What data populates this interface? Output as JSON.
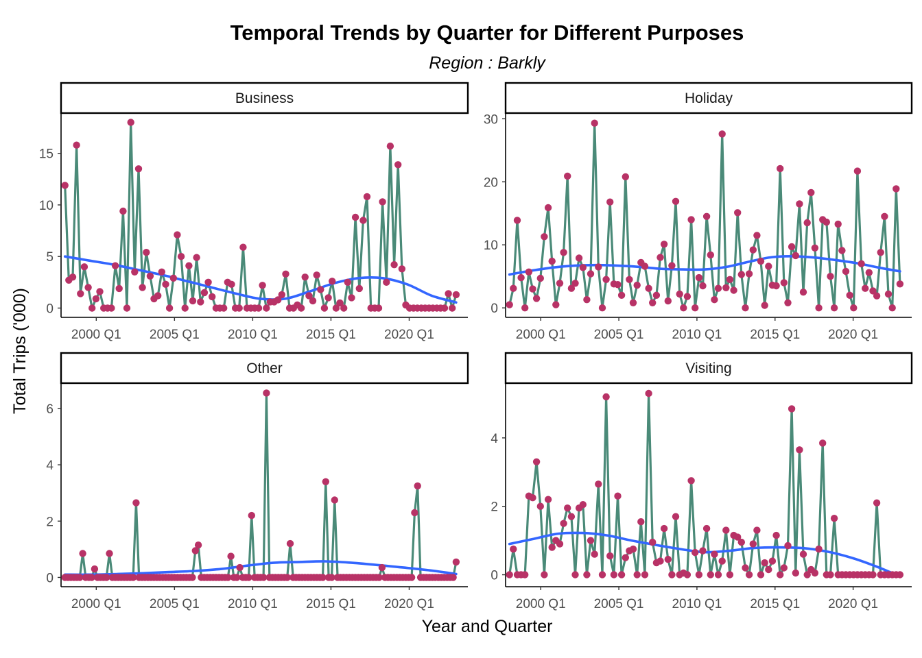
{
  "title": "Temporal Trends by Quarter for Different Purposes",
  "subtitle": "Region : Barkly",
  "xlabel": "Year and Quarter",
  "ylabel": "Total Trips ('000)",
  "colors": {
    "line": "#4a8a78",
    "point": "#b83266",
    "smooth": "#3366ff"
  },
  "chart_data": [
    {
      "type": "line",
      "panel": "Business",
      "x_start": "1998 Q1",
      "x_ticks": [
        "2000 Q1",
        "2005 Q1",
        "2010 Q1",
        "2015 Q1",
        "2020 Q1"
      ],
      "y_ticks": [
        0,
        5,
        10,
        15
      ],
      "ylim": [
        -0.9,
        18.9
      ],
      "values": [
        11.9,
        2.7,
        3.0,
        15.8,
        1.4,
        4.0,
        2.0,
        0.0,
        0.9,
        1.6,
        0.0,
        0.0,
        0.0,
        4.1,
        1.9,
        9.4,
        0.0,
        18.0,
        3.5,
        13.5,
        2.0,
        5.4,
        3.1,
        0.9,
        1.2,
        3.5,
        2.3,
        0.0,
        2.9,
        7.1,
        5.0,
        0.0,
        4.1,
        0.7,
        4.9,
        0.6,
        1.5,
        2.5,
        1.1,
        0.0,
        0.0,
        0.0,
        2.5,
        2.3,
        0.0,
        0.0,
        5.9,
        0.0,
        0.0,
        0.0,
        0.0,
        2.2,
        0.0,
        0.6,
        0.6,
        0.8,
        1.3,
        3.3,
        0.0,
        0.0,
        0.3,
        0.0,
        3.0,
        1.2,
        0.7,
        3.2,
        1.8,
        0.0,
        1.0,
        2.6,
        0.0,
        0.5,
        0.0,
        2.5,
        1.0,
        8.8,
        1.9,
        8.5,
        10.8,
        0.0,
        0.0,
        0.0,
        10.3,
        2.5,
        15.7,
        4.2,
        13.9,
        3.8,
        0.3,
        0.0,
        0.0,
        0.0,
        0.0,
        0.0,
        0.0,
        0.0,
        0.0,
        0.0,
        0.0,
        1.4,
        0.0,
        1.3
      ],
      "smooth": [
        5.0,
        4.6,
        4.2,
        3.7,
        3.2,
        2.6,
        2.0,
        1.4,
        0.9,
        0.9,
        1.6,
        2.4,
        2.9,
        2.9,
        2.3,
        1.2,
        0.55
      ]
    },
    {
      "type": "line",
      "panel": "Holiday",
      "x_start": "1998 Q1",
      "x_ticks": [
        "2000 Q1",
        "2005 Q1",
        "2010 Q1",
        "2015 Q1",
        "2020 Q1"
      ],
      "y_ticks": [
        0,
        10,
        20,
        30
      ],
      "ylim": [
        -1.5,
        30.9
      ],
      "values": [
        0.5,
        3.1,
        13.9,
        4.8,
        0.0,
        5.7,
        3.0,
        1.5,
        4.7,
        11.3,
        15.9,
        7.4,
        0.5,
        3.9,
        8.8,
        20.9,
        3.1,
        3.9,
        7.9,
        6.4,
        1.3,
        5.4,
        29.3,
        6.5,
        0.0,
        4.5,
        16.8,
        3.8,
        3.7,
        2.0,
        20.8,
        4.5,
        0.8,
        3.6,
        7.2,
        6.6,
        3.1,
        0.8,
        2.0,
        8.0,
        10.1,
        1.1,
        6.7,
        16.9,
        2.2,
        0.0,
        1.8,
        14.0,
        0.0,
        4.8,
        3.5,
        14.5,
        8.4,
        1.3,
        3.1,
        27.6,
        3.2,
        4.5,
        2.8,
        15.1,
        5.3,
        0.0,
        5.4,
        9.2,
        11.5,
        7.4,
        0.4,
        6.6,
        3.6,
        3.5,
        22.1,
        4.0,
        0.8,
        9.7,
        8.3,
        16.5,
        2.5,
        13.5,
        18.3,
        9.5,
        0.0,
        14.0,
        13.6,
        5.0,
        0.0,
        13.3,
        9.1,
        5.8,
        2.0,
        0.0,
        21.7,
        7.0,
        3.1,
        5.6,
        2.7,
        1.9,
        8.8,
        14.5,
        2.2,
        0.0,
        18.9,
        3.8
      ],
      "smooth": [
        5.3,
        5.9,
        6.4,
        6.7,
        6.8,
        6.7,
        6.5,
        6.2,
        6.1,
        6.1,
        6.5,
        7.3,
        8.0,
        8.2,
        8.0,
        7.6,
        7.1,
        6.4,
        5.8
      ]
    },
    {
      "type": "line",
      "panel": "Other",
      "x_start": "1998 Q1",
      "x_ticks": [
        "2000 Q1",
        "2005 Q1",
        "2010 Q1",
        "2015 Q1",
        "2020 Q1"
      ],
      "y_ticks": [
        0,
        2,
        4,
        6
      ],
      "ylim": [
        -0.33,
        6.9
      ],
      "values": [
        0,
        0,
        0,
        0,
        0,
        0,
        0.85,
        0,
        0,
        0,
        0.3,
        0,
        0,
        0,
        0,
        0.85,
        0,
        0,
        0,
        0,
        0,
        0,
        0,
        0,
        2.65,
        0,
        0,
        0,
        0,
        0,
        0,
        0,
        0,
        0,
        0,
        0,
        0,
        0,
        0,
        0,
        0,
        0,
        0,
        0,
        0.95,
        1.15,
        0,
        0,
        0,
        0,
        0,
        0,
        0,
        0,
        0,
        0,
        0.75,
        0,
        0,
        0.35,
        0,
        0,
        0,
        2.2,
        0,
        0,
        0,
        0,
        6.55,
        0,
        0,
        0,
        0,
        0,
        0,
        0,
        1.2,
        0,
        0,
        0,
        0,
        0,
        0,
        0,
        0,
        0,
        0,
        0,
        3.4,
        0,
        0,
        2.75,
        0,
        0,
        0,
        0,
        0,
        0,
        0,
        0,
        0,
        0,
        0,
        0,
        0,
        0,
        0,
        0.35,
        0,
        0,
        0,
        0,
        0,
        0,
        0,
        0,
        0,
        0,
        2.3,
        3.25,
        0,
        0,
        0,
        0,
        0,
        0,
        0,
        0,
        0,
        0,
        0,
        0,
        0.55
      ],
      "smooth": [
        0.1,
        0.1,
        0.12,
        0.15,
        0.19,
        0.23,
        0.3,
        0.42,
        0.52,
        0.55,
        0.57,
        0.52,
        0.44,
        0.35,
        0.25,
        0.12
      ]
    },
    {
      "type": "line",
      "panel": "Visiting",
      "x_start": "1998 Q1",
      "x_ticks": [
        "2000 Q1",
        "2005 Q1",
        "2010 Q1",
        "2015 Q1",
        "2020 Q1"
      ],
      "y_ticks": [
        0,
        2,
        4
      ],
      "ylim": [
        -0.35,
        5.6
      ],
      "values": [
        0,
        0.75,
        0,
        0,
        0,
        2.3,
        2.25,
        3.3,
        2.0,
        0,
        2.2,
        0.8,
        1.0,
        0.9,
        1.5,
        1.95,
        1.7,
        0,
        1.95,
        2.05,
        0,
        1.0,
        0.6,
        2.65,
        0,
        5.2,
        0.55,
        0,
        2.3,
        0,
        0.5,
        0.7,
        0.75,
        0,
        1.55,
        0,
        5.3,
        0.95,
        0.35,
        0.4,
        1.35,
        0.45,
        0,
        1.7,
        0,
        0.05,
        0,
        2.75,
        0.65,
        0,
        0.7,
        1.35,
        0,
        0.6,
        0,
        0.4,
        1.3,
        0,
        1.15,
        1.1,
        0.95,
        0.2,
        0,
        0.9,
        1.3,
        0,
        0.35,
        0.15,
        0.4,
        1.15,
        0,
        0.2,
        0.85,
        4.85,
        0.05,
        3.65,
        0.6,
        0,
        0.15,
        0.05,
        0.75,
        3.85,
        0,
        0,
        1.65,
        0,
        0,
        0,
        0,
        0,
        0,
        0,
        0,
        0,
        0,
        2.1,
        0,
        0,
        0,
        0,
        0,
        0
      ],
      "smooth": [
        0.9,
        1.05,
        1.2,
        1.22,
        1.15,
        1.0,
        0.87,
        0.75,
        0.66,
        0.7,
        0.78,
        0.8,
        0.78,
        0.68,
        0.5,
        0.25,
        -0.05
      ]
    }
  ]
}
